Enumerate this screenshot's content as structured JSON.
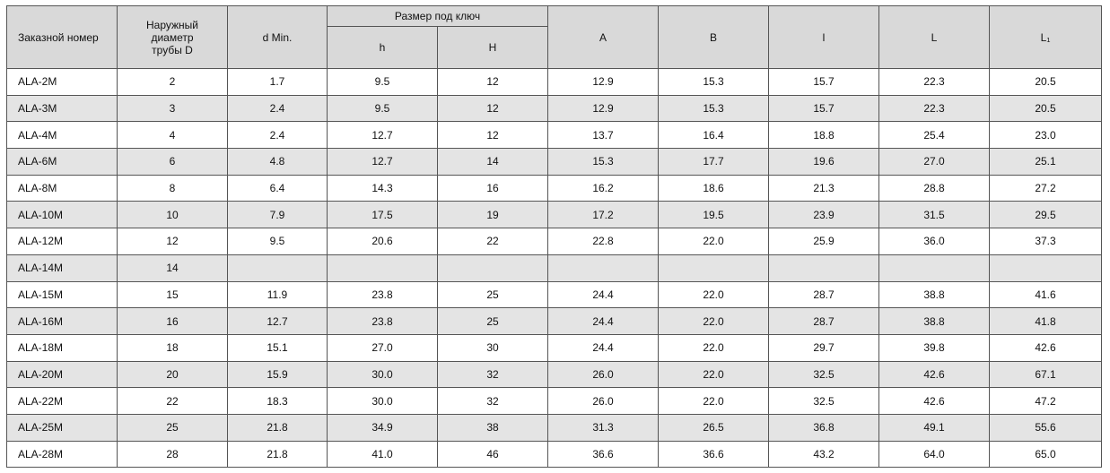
{
  "table": {
    "header": {
      "order_no": "Заказной номер",
      "outer_diameter": "Наружный диаметр трубы D",
      "d_min": "d Min.",
      "wrench_size": "Размер под ключ",
      "h": "h",
      "H": "H",
      "A": "A",
      "B": "B",
      "l": "l",
      "L": "L",
      "L1": "L₁"
    },
    "rows": [
      [
        "ALA-2M",
        "2",
        "1.7",
        "9.5",
        "12",
        "12.9",
        "15.3",
        "15.7",
        "22.3",
        "20.5"
      ],
      [
        "ALA-3M",
        "3",
        "2.4",
        "9.5",
        "12",
        "12.9",
        "15.3",
        "15.7",
        "22.3",
        "20.5"
      ],
      [
        "ALA-4M",
        "4",
        "2.4",
        "12.7",
        "12",
        "13.7",
        "16.4",
        "18.8",
        "25.4",
        "23.0"
      ],
      [
        "ALA-6M",
        "6",
        "4.8",
        "12.7",
        "14",
        "15.3",
        "17.7",
        "19.6",
        "27.0",
        "25.1"
      ],
      [
        "ALA-8M",
        "8",
        "6.4",
        "14.3",
        "16",
        "16.2",
        "18.6",
        "21.3",
        "28.8",
        "27.2"
      ],
      [
        "ALA-10M",
        "10",
        "7.9",
        "17.5",
        "19",
        "17.2",
        "19.5",
        "23.9",
        "31.5",
        "29.5"
      ],
      [
        "ALA-12M",
        "12",
        "9.5",
        "20.6",
        "22",
        "22.8",
        "22.0",
        "25.9",
        "36.0",
        "37.3"
      ],
      [
        "ALA-14M",
        "14",
        null,
        null,
        null,
        null,
        null,
        null,
        null,
        null
      ],
      [
        "ALA-15M",
        "15",
        "11.9",
        "23.8",
        "25",
        "24.4",
        "22.0",
        "28.7",
        "38.8",
        "41.6"
      ],
      [
        "ALA-16M",
        "16",
        "12.7",
        "23.8",
        "25",
        "24.4",
        "22.0",
        "28.7",
        "38.8",
        "41.8"
      ],
      [
        "ALA-18M",
        "18",
        "15.1",
        "27.0",
        "30",
        "24.4",
        "22.0",
        "29.7",
        "39.8",
        "42.6"
      ],
      [
        "ALA-20M",
        "20",
        "15.9",
        "30.0",
        "32",
        "26.0",
        "22.0",
        "32.5",
        "42.6",
        "67.1"
      ],
      [
        "ALA-22M",
        "22",
        "18.3",
        "30.0",
        "32",
        "26.0",
        "22.0",
        "32.5",
        "42.6",
        "47.2"
      ],
      [
        "ALA-25M",
        "25",
        "21.8",
        "34.9",
        "38",
        "31.3",
        "26.5",
        "36.8",
        "49.1",
        "55.6"
      ],
      [
        "ALA-28M",
        "28",
        "21.8",
        "41.0",
        "46",
        "36.6",
        "36.6",
        "43.2",
        "64.0",
        "65.0"
      ]
    ]
  }
}
